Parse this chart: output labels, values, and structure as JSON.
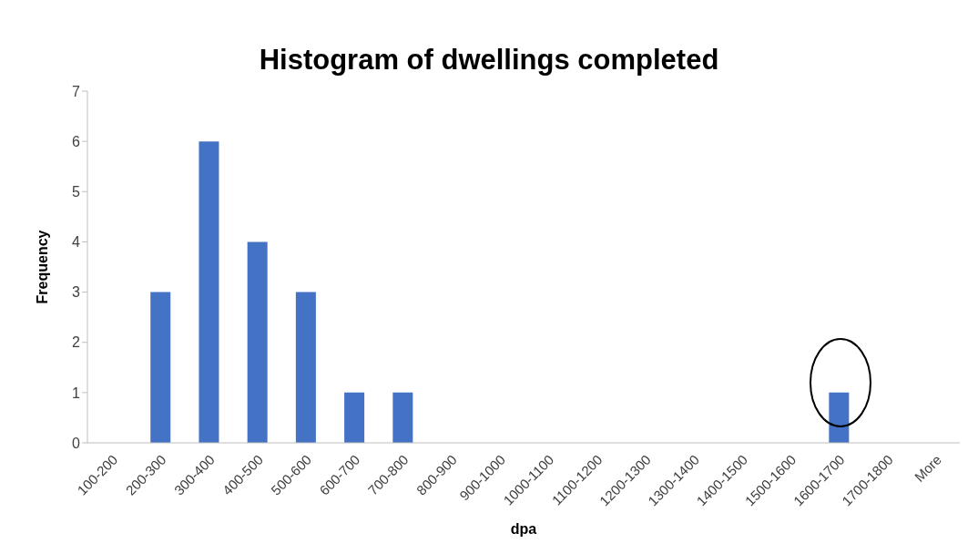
{
  "chart_data": {
    "type": "bar",
    "title": "Histogram of dwellings completed",
    "xlabel": "dpa",
    "ylabel": "Frequency",
    "categories": [
      "100-200",
      "200-300",
      "300-400",
      "400-500",
      "500-600",
      "600-700",
      "700-800",
      "800-900",
      "900-1000",
      "1000-1100",
      "1100-1200",
      "1200-1300",
      "1300-1400",
      "1400-1500",
      "1500-1600",
      "1600-1700",
      "1700-1800",
      "More"
    ],
    "values": [
      0,
      3,
      6,
      4,
      3,
      1,
      1,
      0,
      0,
      0,
      0,
      0,
      0,
      0,
      0,
      1,
      0,
      0
    ],
    "color": "#4472c4",
    "ylim": [
      0,
      7
    ],
    "yticks": [
      0,
      1,
      2,
      3,
      4,
      5,
      6,
      7
    ],
    "legend": false
  }
}
